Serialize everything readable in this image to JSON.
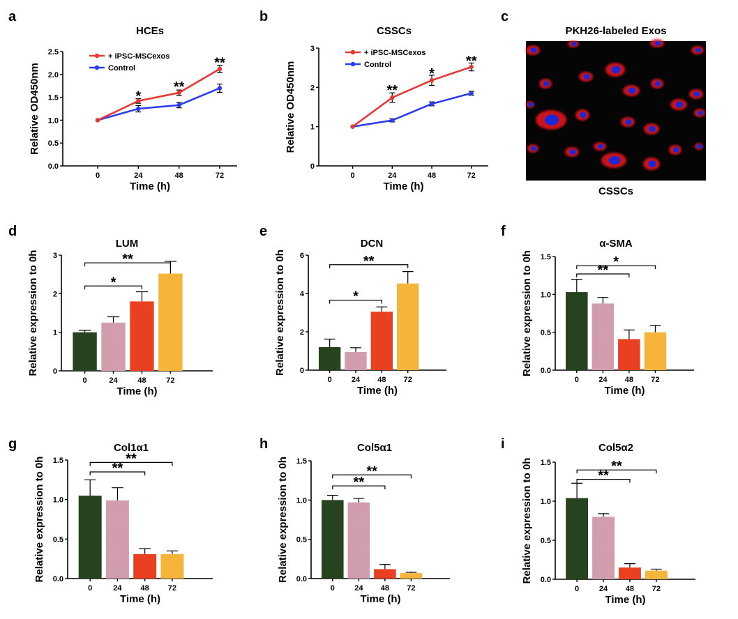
{
  "chart_data": [
    {
      "panel": "a",
      "type": "line",
      "title": "HCEs",
      "xlabel": "Time (h)",
      "ylabel": "Relative OD450nm",
      "x": [
        0,
        24,
        48,
        72
      ],
      "xticks": [
        "0",
        "24",
        "48",
        "72"
      ],
      "ylim": [
        0,
        2.5
      ],
      "yticks": [
        "0.0",
        "0.5",
        "1.0",
        "1.5",
        "2.0",
        "2.5"
      ],
      "series": [
        {
          "name": "+ iPSC-MSCexos",
          "color": "#e53935",
          "values": [
            1.0,
            1.42,
            1.6,
            2.12
          ],
          "errors": [
            0.02,
            0.05,
            0.06,
            0.08
          ]
        },
        {
          "name": "Control",
          "color": "#2b3df0",
          "values": [
            1.0,
            1.25,
            1.33,
            1.7
          ],
          "errors": [
            0.02,
            0.07,
            0.06,
            0.09
          ]
        }
      ],
      "significance": [
        {
          "x": 24,
          "label": "*",
          "y": 1.55
        },
        {
          "x": 48,
          "label": "**",
          "y": 1.75
        },
        {
          "x": 72,
          "label": "**",
          "y": 2.28
        }
      ],
      "legend": "top-left"
    },
    {
      "panel": "b",
      "type": "line",
      "title": "CSSCs",
      "xlabel": "Time (h)",
      "ylabel": "Relative OD450nm",
      "x": [
        0,
        24,
        48,
        72
      ],
      "xticks": [
        "0",
        "24",
        "48",
        "72"
      ],
      "ylim": [
        0,
        3
      ],
      "yticks": [
        "0",
        "1",
        "2",
        "3"
      ],
      "series": [
        {
          "name": "+ iPSC-MSCexos",
          "color": "#e53935",
          "values": [
            1.0,
            1.74,
            2.18,
            2.52
          ],
          "errors": [
            0.02,
            0.12,
            0.13,
            0.1
          ]
        },
        {
          "name": "Control",
          "color": "#2b3df0",
          "values": [
            1.0,
            1.16,
            1.58,
            1.85
          ],
          "errors": [
            0.02,
            0.04,
            0.05,
            0.05
          ]
        }
      ],
      "significance": [
        {
          "x": 24,
          "label": "**",
          "y": 1.95
        },
        {
          "x": 48,
          "label": "*",
          "y": 2.38
        },
        {
          "x": 72,
          "label": "**",
          "y": 2.7
        }
      ],
      "legend": "top-left"
    },
    {
      "panel": "d",
      "type": "bar",
      "title": "LUM",
      "xlabel": "Time (h)",
      "ylabel": "Relative expression to 0h",
      "categories": [
        "0",
        "24",
        "48",
        "72"
      ],
      "values": [
        1.0,
        1.25,
        1.8,
        2.52
      ],
      "errors": [
        0.05,
        0.15,
        0.25,
        0.32
      ],
      "ylim": [
        0,
        3
      ],
      "yticks": [
        "0",
        "1",
        "2",
        "3"
      ],
      "brackets": [
        {
          "from": "0",
          "to": "48",
          "label": "*",
          "y": 2.2
        },
        {
          "from": "0",
          "to": "72",
          "label": "**",
          "y": 2.8
        }
      ]
    },
    {
      "panel": "e",
      "type": "bar",
      "title": "DCN",
      "xlabel": "Time (h)",
      "ylabel": "Relative expression to 0h",
      "categories": [
        "0",
        "24",
        "48",
        "72"
      ],
      "values": [
        1.2,
        0.95,
        3.05,
        4.52
      ],
      "errors": [
        0.42,
        0.22,
        0.25,
        0.62
      ],
      "ylim": [
        0,
        6
      ],
      "yticks": [
        "0",
        "2",
        "4",
        "6"
      ],
      "brackets": [
        {
          "from": "0",
          "to": "48",
          "label": "*",
          "y": 3.65
        },
        {
          "from": "0",
          "to": "72",
          "label": "**",
          "y": 5.5
        }
      ]
    },
    {
      "panel": "f",
      "type": "bar",
      "title": "α-SMA",
      "xlabel": "Time (h)",
      "ylabel": "Relative expression to 0h",
      "categories": [
        "0",
        "24",
        "48",
        "72"
      ],
      "values": [
        1.03,
        0.88,
        0.41,
        0.5
      ],
      "errors": [
        0.17,
        0.08,
        0.12,
        0.09
      ],
      "ylim": [
        0,
        1.5
      ],
      "yticks": [
        "0.0",
        "0.5",
        "1.0",
        "1.5"
      ],
      "brackets": [
        {
          "from": "0",
          "to": "48",
          "label": "**",
          "y": 1.27
        },
        {
          "from": "0",
          "to": "72",
          "label": "*",
          "y": 1.38
        }
      ]
    },
    {
      "panel": "g",
      "type": "bar",
      "title": "Col1α1",
      "xlabel": "Time (h)",
      "ylabel": "Relative expression to 0h",
      "categories": [
        "0",
        "24",
        "48",
        "72"
      ],
      "values": [
        1.05,
        0.99,
        0.31,
        0.31
      ],
      "errors": [
        0.2,
        0.16,
        0.07,
        0.04
      ],
      "ylim": [
        0,
        1.5
      ],
      "yticks": [
        "0.0",
        "0.5",
        "1.0",
        "1.5"
      ],
      "brackets": [
        {
          "from": "0",
          "to": "48",
          "label": "**",
          "y": 1.35
        },
        {
          "from": "0",
          "to": "72",
          "label": "**",
          "y": 1.47
        }
      ]
    },
    {
      "panel": "h",
      "type": "bar",
      "title": "Col5α1",
      "xlabel": "Time (h)",
      "ylabel": "Relative expression to 0h",
      "categories": [
        "0",
        "24",
        "48",
        "72"
      ],
      "values": [
        1.0,
        0.97,
        0.12,
        0.07
      ],
      "errors": [
        0.06,
        0.05,
        0.06,
        0.01
      ],
      "ylim": [
        0,
        1.5
      ],
      "yticks": [
        "0.0",
        "0.5",
        "1.0",
        "1.5"
      ],
      "brackets": [
        {
          "from": "0",
          "to": "48",
          "label": "**",
          "y": 1.18
        },
        {
          "from": "0",
          "to": "72",
          "label": "**",
          "y": 1.32
        }
      ]
    },
    {
      "panel": "i",
      "type": "bar",
      "title": "Col5α2",
      "xlabel": "Time (h)",
      "ylabel": "Relative expression to 0h",
      "categories": [
        "0",
        "24",
        "48",
        "72"
      ],
      "values": [
        1.04,
        0.8,
        0.15,
        0.11
      ],
      "errors": [
        0.19,
        0.04,
        0.05,
        0.02
      ],
      "ylim": [
        0,
        1.5
      ],
      "yticks": [
        "0.0",
        "0.5",
        "1.0",
        "1.5"
      ],
      "brackets": [
        {
          "from": "0",
          "to": "48",
          "label": "**",
          "y": 1.28
        },
        {
          "from": "0",
          "to": "72",
          "label": "**",
          "y": 1.4
        }
      ]
    }
  ],
  "bar_colors": [
    "#27421f",
    "#d8a6b5",
    "#e84020",
    "#f5b43a"
  ],
  "image_panel": {
    "panel": "c",
    "title": "PKH26-labeled Exos",
    "caption": "CSSCs",
    "background": "#050505",
    "cell_color": "#e0141c",
    "nucleus_color": "#1c28d8"
  }
}
